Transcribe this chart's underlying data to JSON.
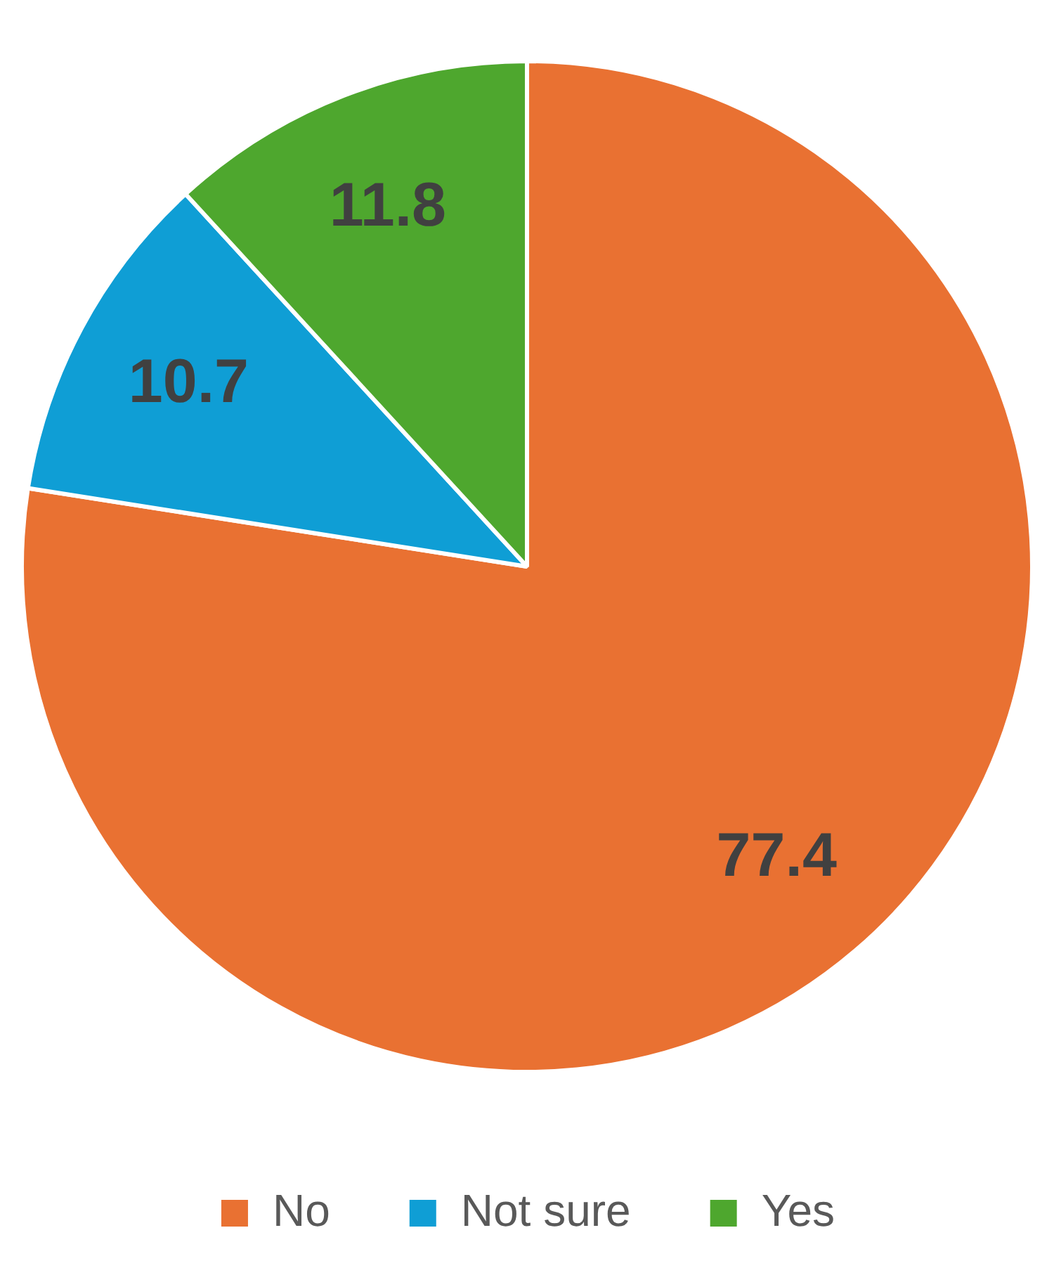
{
  "chart_data": {
    "type": "pie",
    "categories": [
      "No",
      "Not sure",
      "Yes"
    ],
    "values": [
      77.4,
      10.7,
      11.8
    ],
    "colors": [
      "#e97132",
      "#0f9ed5",
      "#4ea72e"
    ],
    "data_labels": true,
    "legend": "bottom"
  }
}
